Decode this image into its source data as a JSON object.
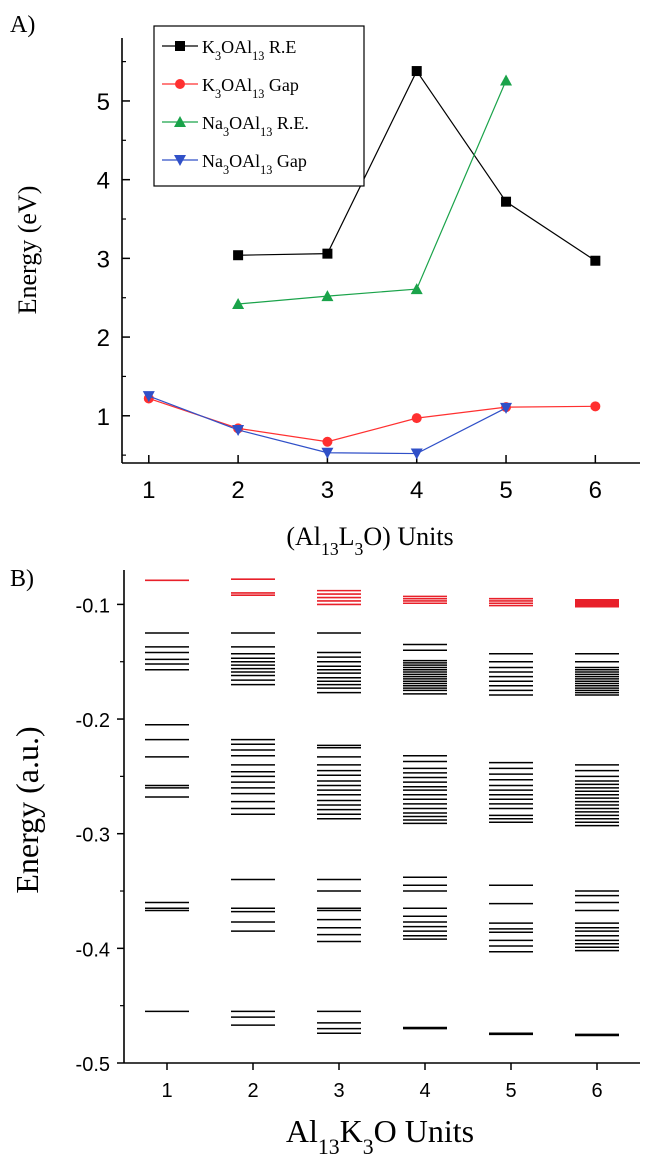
{
  "colors": {
    "k_re": "#000000",
    "k_gap": "#ff3030",
    "na_re": "#1aa34a",
    "na_gap": "#3050c8",
    "homo_lumo_red": "#e8202a",
    "level_black": "#000000"
  },
  "chart_data": [
    {
      "panel_label": "A)",
      "type": "line",
      "xlabel_parts": [
        "(Al",
        "13",
        "L",
        "3",
        "O) Units"
      ],
      "ylabel": "Energy (eV)",
      "xlim": [
        0.7,
        6.5
      ],
      "ylim": [
        0.4,
        5.8
      ],
      "xticks": [
        1,
        2,
        3,
        4,
        5,
        6
      ],
      "xtick_labels": [
        "1",
        "2",
        "3",
        "4",
        "5",
        "6"
      ],
      "yticks": [
        1,
        2,
        3,
        4,
        5
      ],
      "ytick_labels": [
        "1",
        "2",
        "3",
        "4",
        "5"
      ],
      "grid": false,
      "legend_position": "top-left",
      "series": [
        {
          "key": "k_re",
          "name": "K3OAl13 R.E",
          "legend_parts": [
            "K",
            "3",
            "OAl",
            "13",
            " R.E"
          ],
          "marker": "square",
          "x": [
            2,
            3,
            4,
            5,
            6
          ],
          "y": [
            3.04,
            3.06,
            5.38,
            3.72,
            2.97
          ]
        },
        {
          "key": "k_gap",
          "name": "K3OAl13 Gap",
          "legend_parts": [
            "K",
            "3",
            "OAl",
            "13",
            " Gap"
          ],
          "marker": "circle",
          "x": [
            1,
            2,
            3,
            4,
            5,
            6
          ],
          "y": [
            1.22,
            0.84,
            0.67,
            0.97,
            1.11,
            1.12
          ]
        },
        {
          "key": "na_re",
          "name": "Na3OAl13 R.E.",
          "legend_parts": [
            "Na",
            "3",
            "OAl",
            "13",
            " R.E."
          ],
          "marker": "triangle-up",
          "x": [
            2,
            3,
            4,
            5
          ],
          "y": [
            2.42,
            2.52,
            2.61,
            5.26
          ]
        },
        {
          "key": "na_gap",
          "name": "Na3OAl13 Gap",
          "legend_parts": [
            "Na",
            "3",
            "OAl",
            "13",
            " Gap"
          ],
          "marker": "triangle-down",
          "x": [
            1,
            2,
            3,
            4,
            5
          ],
          "y": [
            1.25,
            0.82,
            0.53,
            0.52,
            1.1
          ]
        }
      ]
    },
    {
      "panel_label": "B)",
      "type": "energy-levels",
      "xlabel_parts": [
        "Al",
        "13",
        "K",
        "3",
        "O Units"
      ],
      "ylabel": "Energy (a.u.)",
      "xlim": [
        0.5,
        6.5
      ],
      "ylim": [
        -0.5,
        -0.07
      ],
      "xticks": [
        1,
        2,
        3,
        4,
        5,
        6
      ],
      "xtick_labels": [
        "1",
        "2",
        "3",
        "4",
        "5",
        "6"
      ],
      "yticks": [
        -0.1,
        -0.2,
        -0.3,
        -0.4,
        -0.5
      ],
      "ytick_labels": [
        "-0.1",
        "-0.2",
        "-0.3",
        "-0.4",
        "-0.5"
      ],
      "grid": false,
      "columns": [
        {
          "x": 1,
          "unoccupied": [
            -0.079
          ],
          "occupied": [
            -0.125,
            -0.137,
            -0.142,
            -0.148,
            -0.152,
            -0.157,
            -0.205,
            -0.218,
            -0.233,
            -0.258,
            -0.26,
            -0.268,
            -0.36,
            -0.365,
            -0.367,
            -0.455
          ]
        },
        {
          "x": 2,
          "unoccupied": [
            -0.078,
            -0.09,
            -0.092
          ],
          "occupied": [
            -0.125,
            -0.137,
            -0.143,
            -0.147,
            -0.15,
            -0.153,
            -0.156,
            -0.159,
            -0.162,
            -0.166,
            -0.17,
            -0.218,
            -0.222,
            -0.227,
            -0.232,
            -0.24,
            -0.246,
            -0.25,
            -0.255,
            -0.26,
            -0.265,
            -0.272,
            -0.278,
            -0.283,
            -0.34,
            -0.365,
            -0.368,
            -0.377,
            -0.385,
            -0.455,
            -0.46,
            -0.467
          ]
        },
        {
          "x": 3,
          "unoccupied": [
            -0.088,
            -0.091,
            -0.094,
            -0.097,
            -0.1
          ],
          "occupied": [
            -0.125,
            -0.142,
            -0.146,
            -0.15,
            -0.154,
            -0.157,
            -0.16,
            -0.164,
            -0.167,
            -0.17,
            -0.173,
            -0.177,
            -0.223,
            -0.225,
            -0.233,
            -0.24,
            -0.245,
            -0.249,
            -0.254,
            -0.258,
            -0.262,
            -0.266,
            -0.271,
            -0.275,
            -0.279,
            -0.283,
            -0.287,
            -0.34,
            -0.35,
            -0.365,
            -0.367,
            -0.375,
            -0.382,
            -0.388,
            -0.394,
            -0.455,
            -0.465,
            -0.47,
            -0.474
          ]
        },
        {
          "x": 4,
          "unoccupied": [
            -0.093,
            -0.095,
            -0.097,
            -0.099
          ],
          "occupied": [
            -0.135,
            -0.14,
            -0.149,
            -0.151,
            -0.153,
            -0.155,
            -0.157,
            -0.159,
            -0.161,
            -0.163,
            -0.165,
            -0.167,
            -0.169,
            -0.171,
            -0.173,
            -0.175,
            -0.178,
            -0.232,
            -0.237,
            -0.243,
            -0.247,
            -0.251,
            -0.255,
            -0.259,
            -0.262,
            -0.266,
            -0.27,
            -0.274,
            -0.278,
            -0.282,
            -0.285,
            -0.288,
            -0.291,
            -0.338,
            -0.345,
            -0.35,
            -0.365,
            -0.372,
            -0.377,
            -0.381,
            -0.385,
            -0.389,
            -0.392,
            -0.469,
            -0.47
          ]
        },
        {
          "x": 5,
          "unoccupied": [
            -0.095,
            -0.097,
            -0.099,
            -0.101
          ],
          "occupied": [
            -0.143,
            -0.15,
            -0.155,
            -0.159,
            -0.163,
            -0.167,
            -0.171,
            -0.175,
            -0.179,
            -0.238,
            -0.243,
            -0.248,
            -0.253,
            -0.258,
            -0.262,
            -0.266,
            -0.27,
            -0.274,
            -0.278,
            -0.284,
            -0.287,
            -0.29,
            -0.345,
            -0.361,
            -0.378,
            -0.383,
            -0.386,
            -0.393,
            -0.398,
            -0.403,
            -0.474,
            -0.475
          ]
        },
        {
          "x": 6,
          "unoccupied": [
            -0.096,
            -0.097,
            -0.098,
            -0.099,
            -0.1,
            -0.101,
            -0.102
          ],
          "occupied": [
            -0.143,
            -0.15,
            -0.155,
            -0.157,
            -0.159,
            -0.161,
            -0.163,
            -0.165,
            -0.167,
            -0.169,
            -0.171,
            -0.173,
            -0.175,
            -0.177,
            -0.179,
            -0.24,
            -0.245,
            -0.25,
            -0.254,
            -0.257,
            -0.26,
            -0.263,
            -0.266,
            -0.269,
            -0.272,
            -0.275,
            -0.278,
            -0.281,
            -0.284,
            -0.287,
            -0.29,
            -0.293,
            -0.35,
            -0.354,
            -0.36,
            -0.367,
            -0.378,
            -0.382,
            -0.385,
            -0.389,
            -0.393,
            -0.396,
            -0.399,
            -0.402,
            -0.475,
            -0.476
          ]
        }
      ]
    }
  ]
}
